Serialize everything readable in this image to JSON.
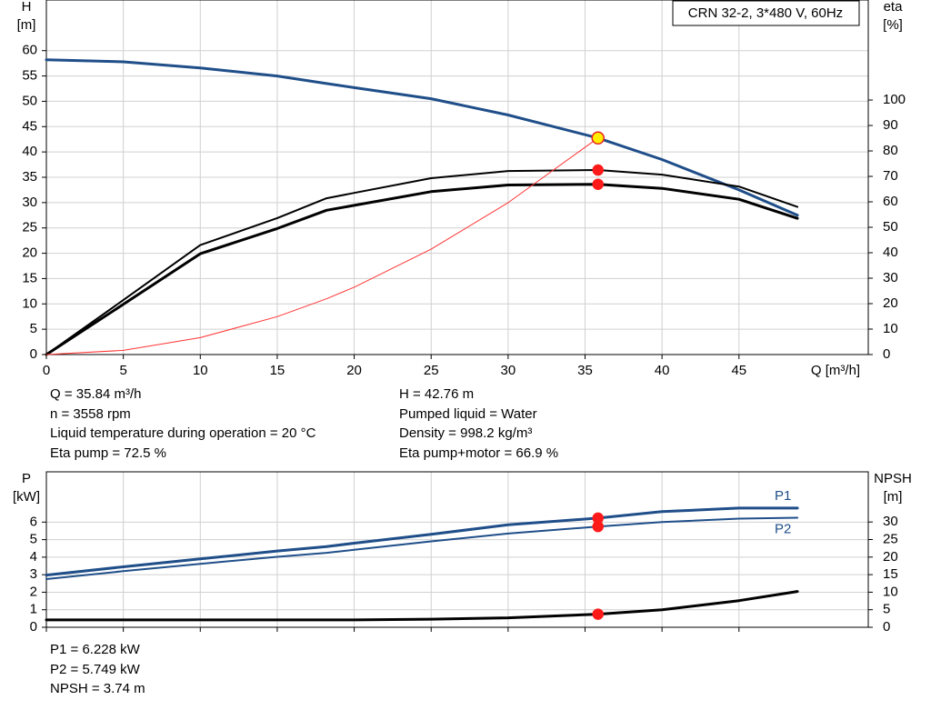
{
  "chart_data": [
    {
      "type": "line",
      "title": "CRN 32-2, 3*480 V, 60Hz",
      "ylabel": "H",
      "yunit": "[m]",
      "y2label": "eta",
      "y2unit": "[%]",
      "xlabel": "Q [m³/h]",
      "x": [
        0,
        5,
        10,
        15,
        18.2,
        20,
        25,
        30,
        35.84,
        40,
        45,
        48.8
      ],
      "xlim": [
        0,
        53.4
      ],
      "xticks": [
        0,
        5,
        10,
        15,
        20,
        25,
        30,
        35,
        40,
        45
      ],
      "ylim": [
        0,
        70
      ],
      "yticks": [
        0,
        5,
        10,
        15,
        20,
        25,
        30,
        35,
        40,
        45,
        50,
        55,
        60
      ],
      "y2lim": [
        0,
        139.3
      ],
      "y2ticks": [
        0,
        10,
        20,
        30,
        40,
        50,
        60,
        70,
        80,
        90,
        100
      ],
      "grid": true,
      "show_xtick_labels": true,
      "series": [
        {
          "color": "#1f4e89",
          "linewidth": 3,
          "values": [
            58.2,
            57.8,
            56.6,
            55,
            53.5,
            52.7,
            50.5,
            47.3,
            42.76,
            38.5,
            32.5,
            27.5
          ]
        },
        {
          "color": "#000000",
          "linewidth": 2,
          "axis": "y2",
          "values": [
            0,
            21.4,
            43,
            53.6,
            61.4,
            63.5,
            69.3,
            72.1,
            72.5,
            70.7,
            66,
            58
          ]
        },
        {
          "color": "#000000",
          "linewidth": 3,
          "axis": "y2",
          "values": [
            0,
            19.7,
            39.6,
            49.5,
            56.7,
            58.6,
            64,
            66.6,
            66.9,
            65.3,
            61,
            53.5
          ]
        },
        {
          "color": "#ff3333",
          "linewidth": 1,
          "values": [
            0,
            0.83,
            3.33,
            7.49,
            11.0,
            13.3,
            20.8,
            30.0,
            42.76,
            null,
            null,
            null
          ]
        }
      ],
      "markers": [
        {
          "x": 35.84,
          "y": 42.76,
          "fill": "#ffee00",
          "stroke": "#e82020"
        },
        {
          "x": 35.84,
          "y": 72.5,
          "axis": "y2",
          "fill": "#ff1a1a",
          "stroke": "#ff1a1a"
        },
        {
          "x": 35.84,
          "y": 66.9,
          "axis": "y2",
          "fill": "#ff1a1a",
          "stroke": "#ff1a1a"
        }
      ],
      "info": [
        [
          "Q = 35.84 m³/h",
          "n = 3558 rpm",
          "Liquid temperature during operation = 20 °C",
          "Eta pump = 72.5 %"
        ],
        [
          "H = 42.76 m",
          "Pumped liquid = Water",
          "Density = 998.2 kg/m³",
          "Eta pump+motor = 66.9 %"
        ]
      ]
    },
    {
      "type": "line",
      "ylabel": "P",
      "yunit": "[kW]",
      "y2label": "NPSH",
      "y2unit": "[m]",
      "x": [
        0,
        5,
        10,
        15,
        18.2,
        20,
        25,
        30,
        35.84,
        40,
        45,
        48.8
      ],
      "xlim": [
        0,
        53.4
      ],
      "xticks": [
        0,
        5,
        10,
        15,
        20,
        25,
        30,
        35,
        40,
        45
      ],
      "ylim": [
        0,
        8.87
      ],
      "yticks": [
        0,
        1,
        2,
        3,
        4,
        5,
        6
      ],
      "y2lim": [
        0,
        44.3
      ],
      "y2ticks": [
        0,
        5,
        10,
        15,
        20,
        25,
        30
      ],
      "grid": true,
      "show_xtick_labels": false,
      "series": [
        {
          "name": "P1",
          "color": "#1f4e89",
          "linewidth": 3,
          "values": [
            2.98,
            3.45,
            3.9,
            4.35,
            4.6,
            4.8,
            5.3,
            5.85,
            6.228,
            6.6,
            6.8,
            6.8
          ]
        },
        {
          "name": "P2",
          "color": "#1f4e89",
          "linewidth": 2,
          "values": [
            2.75,
            3.2,
            3.62,
            4.02,
            4.25,
            4.42,
            4.9,
            5.35,
            5.749,
            6.0,
            6.2,
            6.25
          ]
        },
        {
          "color": "#000000",
          "linewidth": 3,
          "axis": "y2",
          "values": [
            2.1,
            2.1,
            2.1,
            2.1,
            2.1,
            2.1,
            2.3,
            2.7,
            3.74,
            5,
            7.6,
            10.2
          ]
        }
      ],
      "markers": [
        {
          "x": 35.84,
          "y": 6.228,
          "fill": "#ff1a1a",
          "stroke": "#ff1a1a"
        },
        {
          "x": 35.84,
          "y": 5.749,
          "fill": "#ff1a1a",
          "stroke": "#ff1a1a"
        },
        {
          "x": 35.84,
          "y": 3.74,
          "axis": "y2",
          "fill": "#ff1a1a",
          "stroke": "#ff1a1a"
        }
      ],
      "info": [
        [
          "P1 = 6.228 kW",
          "P2 = 5.749 kW",
          "NPSH = 3.74 m"
        ]
      ]
    }
  ]
}
